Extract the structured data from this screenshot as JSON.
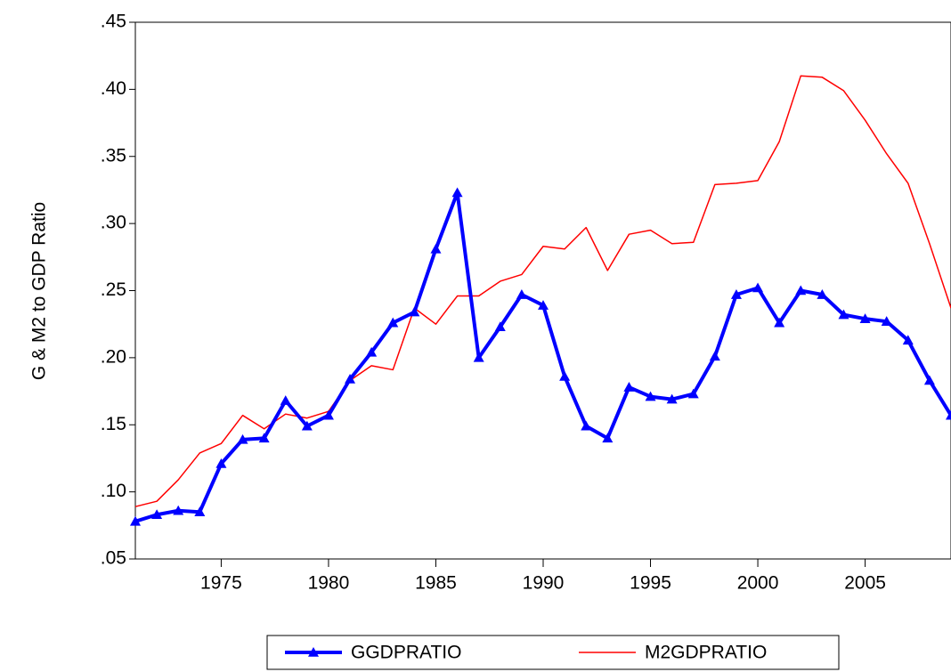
{
  "chart_data": {
    "type": "line",
    "y_label": "G & M2 to GDP Ratio",
    "x": [
      1971,
      1972,
      1973,
      1974,
      1975,
      1976,
      1977,
      1978,
      1979,
      1980,
      1981,
      1982,
      1983,
      1984,
      1985,
      1986,
      1987,
      1988,
      1989,
      1990,
      1991,
      1992,
      1993,
      1994,
      1995,
      1996,
      1997,
      1998,
      1999,
      2000,
      2001,
      2002,
      2003,
      2004,
      2005,
      2006,
      2007,
      2008,
      2009
    ],
    "series": [
      {
        "name": "GGDPRATIO",
        "color": "#0000ff",
        "marker": "triangle",
        "values": [
          0.078,
          0.083,
          0.086,
          0.085,
          0.121,
          0.139,
          0.14,
          0.168,
          0.149,
          0.157,
          0.184,
          0.204,
          0.226,
          0.234,
          0.281,
          0.323,
          0.2,
          0.223,
          0.247,
          0.239,
          0.186,
          0.149,
          0.14,
          0.178,
          0.171,
          0.169,
          0.173,
          0.201,
          0.247,
          0.252,
          0.226,
          0.25,
          0.247,
          0.232,
          0.229,
          0.227,
          0.213,
          0.183,
          0.157
        ]
      },
      {
        "name": "M2GDPRATIO",
        "color": "#ff0000",
        "values": [
          0.089,
          0.093,
          0.109,
          0.129,
          0.136,
          0.157,
          0.147,
          0.158,
          0.155,
          0.16,
          0.183,
          0.194,
          0.191,
          0.237,
          0.225,
          0.246,
          0.246,
          0.257,
          0.262,
          0.283,
          0.281,
          0.297,
          0.265,
          0.292,
          0.295,
          0.285,
          0.286,
          0.329,
          0.33,
          0.332,
          0.361,
          0.41,
          0.409,
          0.399,
          0.377,
          0.352,
          0.33,
          0.285,
          0.237
        ]
      }
    ],
    "xlim": [
      1971,
      2009
    ],
    "xticks": [
      1975,
      1980,
      1985,
      1990,
      1995,
      2000,
      2005
    ],
    "ylim": [
      0.05,
      0.45
    ],
    "yticks": [
      {
        "value": 0.05,
        "label": ".05"
      },
      {
        "value": 0.1,
        "label": ".10"
      },
      {
        "value": 0.15,
        "label": ".15"
      },
      {
        "value": 0.2,
        "label": ".20"
      },
      {
        "value": 0.25,
        "label": ".25"
      },
      {
        "value": 0.3,
        "label": ".30"
      },
      {
        "value": 0.35,
        "label": ".35"
      },
      {
        "value": 0.4,
        "label": ".40"
      },
      {
        "value": 0.45,
        "label": ".45"
      }
    ],
    "legend": "bottom"
  }
}
